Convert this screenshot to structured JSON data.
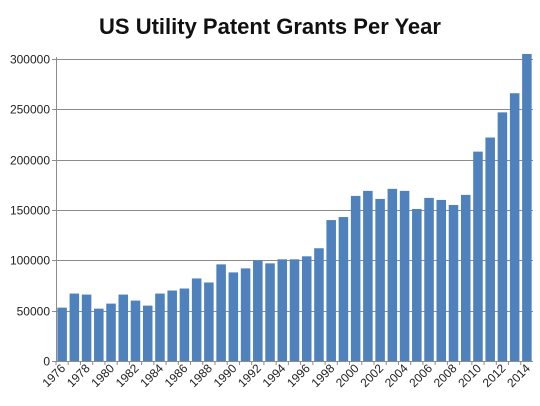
{
  "chart_data": {
    "type": "bar",
    "title": "US Utility Patent Grants Per Year",
    "xlabel": "",
    "ylabel": "",
    "ylim": [
      0,
      300000
    ],
    "yticks": [
      "0",
      "50000",
      "100000",
      "150000",
      "200000",
      "250000",
      "300000"
    ],
    "ytick_values": [
      0,
      50000,
      100000,
      150000,
      200000,
      250000,
      300000
    ],
    "grid": true,
    "legend": "none",
    "bar_color": "#4f81bd",
    "categories": [
      "1976",
      "1977",
      "1978",
      "1979",
      "1980",
      "1981",
      "1982",
      "1983",
      "1984",
      "1985",
      "1986",
      "1987",
      "1988",
      "1989",
      "1990",
      "1991",
      "1992",
      "1993",
      "1994",
      "1995",
      "1996",
      "1997",
      "1998",
      "1999",
      "2000",
      "2001",
      "2002",
      "2003",
      "2004",
      "2005",
      "2006",
      "2007",
      "2008",
      "2009",
      "2010",
      "2011",
      "2012",
      "2013",
      "2014"
    ],
    "tick_labels_shown": [
      "1976",
      "1978",
      "1980",
      "1982",
      "1984",
      "1986",
      "1988",
      "1990",
      "1992",
      "1994",
      "1996",
      "1998",
      "2000",
      "2002",
      "2004",
      "2006",
      "2008",
      "2010",
      "2012",
      "2014"
    ],
    "values": [
      53000,
      67000,
      66000,
      52000,
      57000,
      66000,
      60000,
      55000,
      67000,
      70000,
      72000,
      82000,
      78000,
      96000,
      88000,
      92000,
      100000,
      97000,
      101000,
      101000,
      104000,
      112000,
      140000,
      143000,
      164000,
      169000,
      161000,
      171000,
      169000,
      151000,
      162000,
      160000,
      155000,
      165000,
      208000,
      222000,
      247000,
      266000,
      305000
    ]
  }
}
